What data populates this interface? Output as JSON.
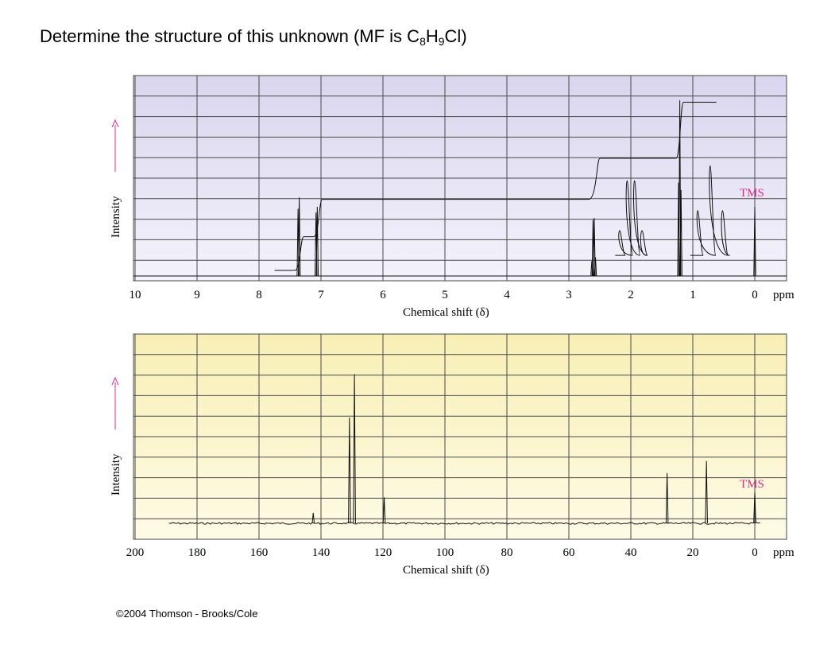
{
  "slide": {
    "title": {
      "prefix": "Determine the structure of this unknown (MF is C",
      "sub1": "8",
      "mid1": "H",
      "sub2": "9",
      "suffix": "Cl)"
    },
    "copyright": "©2004 Thomson - Brooks/Cole"
  },
  "colors": {
    "h_background": "#e6e3f3",
    "c_background": "#fbf5c9",
    "grid": "#4a4a4a",
    "tms_label": "#e0298a",
    "arrow": "#e0298a",
    "trace": "#111111"
  },
  "chart_data": [
    {
      "type": "line",
      "spectrum": "1H NMR",
      "xlabel": "Chemical shift (δ)",
      "ylabel": "Intensity",
      "x_unit": "ppm",
      "xlim": [
        10,
        0
      ],
      "x_ticks": [
        "10",
        "9",
        "8",
        "7",
        "6",
        "5",
        "4",
        "3",
        "2",
        "1",
        "0"
      ],
      "grid": true,
      "annotation": "TMS",
      "peaks": [
        {
          "shift": 7.37,
          "intensity": 0.36
        },
        {
          "shift": 7.35,
          "intensity": 0.42
        },
        {
          "shift": 7.08,
          "intensity": 0.34
        },
        {
          "shift": 7.06,
          "intensity": 0.37
        },
        {
          "shift": 2.63,
          "intensity": 0.08
        },
        {
          "shift": 2.61,
          "intensity": 0.3
        },
        {
          "shift": 2.59,
          "intensity": 0.31
        },
        {
          "shift": 2.57,
          "intensity": 0.1
        },
        {
          "shift": 1.23,
          "intensity": 0.5
        },
        {
          "shift": 1.21,
          "intensity": 0.94
        },
        {
          "shift": 1.19,
          "intensity": 0.46
        },
        {
          "shift": 0.0,
          "intensity": 0.37
        }
      ],
      "integral_levels": [
        {
          "from": 7.75,
          "to": 7.42,
          "level": 0.03
        },
        {
          "from": 7.28,
          "to": 7.12,
          "level": 0.21
        },
        {
          "from": 6.98,
          "to": 2.68,
          "level": 0.41
        },
        {
          "from": 2.5,
          "to": 1.27,
          "level": 0.63
        },
        {
          "from": 1.15,
          "to": 0.62,
          "level": 0.93
        }
      ],
      "expansions": [
        {
          "center": 2.0,
          "spacing": 0.12,
          "relative": [
            1,
            3,
            3,
            1
          ],
          "height": 0.4,
          "baseline": 0.11
        },
        {
          "center": 0.72,
          "spacing": 0.2,
          "relative": [
            1,
            2,
            1
          ],
          "height": 0.48,
          "baseline": 0.11
        }
      ]
    },
    {
      "type": "line",
      "spectrum": "13C NMR",
      "xlabel": "Chemical shift (δ)",
      "ylabel": "Intensity",
      "x_unit": "ppm",
      "xlim": [
        200,
        0
      ],
      "x_ticks": [
        "200",
        "180",
        "160",
        "140",
        "120",
        "100",
        "80",
        "60",
        "40",
        "20",
        "0"
      ],
      "grid": true,
      "annotation": "TMS",
      "peaks": [
        {
          "shift": 142.5,
          "intensity": 0.06
        },
        {
          "shift": 130.8,
          "intensity": 0.61
        },
        {
          "shift": 129.2,
          "intensity": 0.86
        },
        {
          "shift": 119.6,
          "intensity": 0.15
        },
        {
          "shift": 28.3,
          "intensity": 0.29
        },
        {
          "shift": 15.6,
          "intensity": 0.36
        },
        {
          "shift": 0.0,
          "intensity": 0.18
        }
      ]
    }
  ]
}
